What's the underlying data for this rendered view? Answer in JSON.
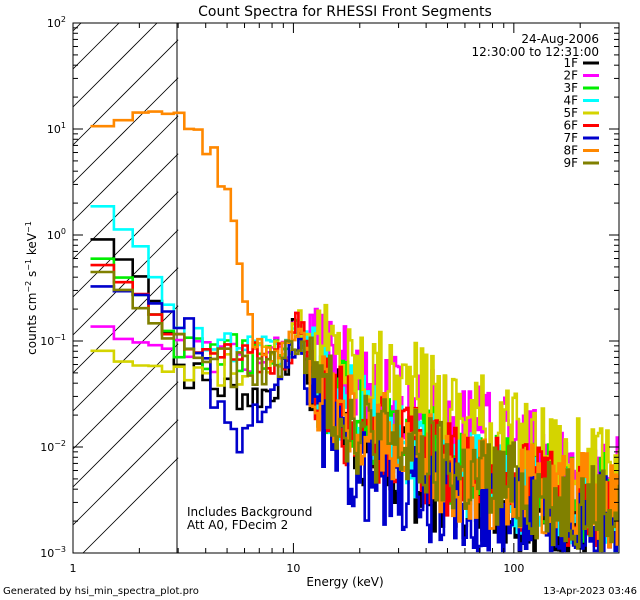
{
  "chart_data": {
    "type": "line",
    "title": "Count Spectra for RHESSI Front Segments",
    "xlabel": "Energy (keV)",
    "ylabel": "counts cm-2 s-1 keV-1",
    "ylabel_parts": {
      "base": "counts cm",
      "exp1": "−2",
      "mid": " s",
      "exp2": "−1",
      "end": " keV",
      "exp3": "−1"
    },
    "xscale": "log",
    "yscale": "log",
    "xlim": [
      1,
      300
    ],
    "ylim": [
      0.001,
      100
    ],
    "x_tick_labels": [
      {
        "value": 1,
        "label": "1"
      },
      {
        "value": 10,
        "label": "10"
      },
      {
        "value": 100,
        "label": "100"
      }
    ],
    "y_tick_labels": [
      {
        "value": 0.001,
        "base": "10",
        "exp": "−3"
      },
      {
        "value": 0.01,
        "base": "10",
        "exp": "−2"
      },
      {
        "value": 0.1,
        "base": "10",
        "exp": "−1"
      },
      {
        "value": 1,
        "base": "10",
        "exp": "0"
      },
      {
        "value": 10,
        "base": "10",
        "exp": "1"
      },
      {
        "value": 100,
        "base": "10",
        "exp": "2"
      }
    ],
    "hatched_region": {
      "x_from": 1,
      "x_to": 3
    },
    "date": "24-Aug-2006",
    "time_range": "12:30:00 to 12:31:00",
    "annotations": [
      "Includes Background",
      "Att A0, FDecim 2"
    ],
    "legend_position": "top-right",
    "series": [
      {
        "name": "1F",
        "color": "#000000",
        "ctrl": [
          [
            1.2,
            1.25
          ],
          [
            1.5,
            0.7
          ],
          [
            2.0,
            0.45
          ],
          [
            2.5,
            0.2
          ],
          [
            3.0,
            0.06
          ],
          [
            4.0,
            0.04
          ],
          [
            5.0,
            0.035
          ],
          [
            6.5,
            0.03
          ],
          [
            8.0,
            0.035
          ],
          [
            9.5,
            0.07
          ],
          [
            10.5,
            0.16
          ],
          [
            11.5,
            0.05
          ],
          [
            15,
            0.025
          ],
          [
            20,
            0.012
          ],
          [
            30,
            0.006
          ],
          [
            50,
            0.004
          ],
          [
            100,
            0.003
          ],
          [
            300,
            0.002
          ]
        ]
      },
      {
        "name": "2F",
        "color": "#ff00ff",
        "ctrl": [
          [
            1.2,
            0.15
          ],
          [
            1.5,
            0.12
          ],
          [
            2.0,
            0.1
          ],
          [
            2.5,
            0.09
          ],
          [
            3.0,
            0.08
          ],
          [
            4.0,
            0.075
          ],
          [
            6.0,
            0.07
          ],
          [
            8.0,
            0.07
          ],
          [
            9.5,
            0.08
          ],
          [
            10.5,
            0.14
          ],
          [
            12,
            0.08
          ],
          [
            15,
            0.06
          ],
          [
            20,
            0.04
          ],
          [
            30,
            0.028
          ],
          [
            50,
            0.018
          ],
          [
            100,
            0.01
          ],
          [
            200,
            0.006
          ],
          [
            300,
            0.0045
          ]
        ]
      },
      {
        "name": "3F",
        "color": "#00ee00",
        "ctrl": [
          [
            1.2,
            0.65
          ],
          [
            1.5,
            0.5
          ],
          [
            2.0,
            0.28
          ],
          [
            2.5,
            0.15
          ],
          [
            3.0,
            0.1
          ],
          [
            4.0,
            0.08
          ],
          [
            6.0,
            0.075
          ],
          [
            8.0,
            0.07
          ],
          [
            9.5,
            0.08
          ],
          [
            10.5,
            0.15
          ],
          [
            12,
            0.05
          ],
          [
            15,
            0.03
          ],
          [
            20,
            0.02
          ],
          [
            30,
            0.013
          ],
          [
            50,
            0.008
          ],
          [
            100,
            0.005
          ],
          [
            300,
            0.003
          ]
        ]
      },
      {
        "name": "4F",
        "color": "#00ffff",
        "ctrl": [
          [
            1.2,
            2.5
          ],
          [
            1.5,
            1.6
          ],
          [
            2.0,
            0.8
          ],
          [
            2.5,
            0.3
          ],
          [
            3.0,
            0.15
          ],
          [
            4.0,
            0.1
          ],
          [
            6.0,
            0.08
          ],
          [
            8.0,
            0.07
          ],
          [
            9.5,
            0.08
          ],
          [
            10.5,
            0.14
          ],
          [
            12,
            0.06
          ],
          [
            15,
            0.03
          ],
          [
            20,
            0.018
          ],
          [
            30,
            0.011
          ],
          [
            50,
            0.007
          ],
          [
            100,
            0.004
          ],
          [
            300,
            0.0025
          ]
        ]
      },
      {
        "name": "5F",
        "color": "#d4d400",
        "ctrl": [
          [
            1.2,
            0.1
          ],
          [
            1.5,
            0.07
          ],
          [
            2.0,
            0.055
          ],
          [
            2.5,
            0.055
          ],
          [
            3.0,
            0.05
          ],
          [
            4.0,
            0.05
          ],
          [
            5.0,
            0.055
          ],
          [
            6.5,
            0.06
          ],
          [
            8.0,
            0.075
          ],
          [
            9.5,
            0.1
          ],
          [
            10.5,
            0.16
          ],
          [
            12,
            0.11
          ],
          [
            15,
            0.08
          ],
          [
            20,
            0.055
          ],
          [
            30,
            0.04
          ],
          [
            50,
            0.025
          ],
          [
            100,
            0.013
          ],
          [
            200,
            0.007
          ],
          [
            300,
            0.005
          ]
        ]
      },
      {
        "name": "6F",
        "color": "#ff0000",
        "ctrl": [
          [
            1.2,
            0.6
          ],
          [
            1.5,
            0.45
          ],
          [
            2.0,
            0.3
          ],
          [
            2.5,
            0.16
          ],
          [
            3.0,
            0.08
          ],
          [
            4.0,
            0.07
          ],
          [
            6.0,
            0.065
          ],
          [
            8.0,
            0.07
          ],
          [
            9.5,
            0.08
          ],
          [
            10.5,
            0.15
          ],
          [
            12,
            0.05
          ],
          [
            15,
            0.025
          ],
          [
            20,
            0.015
          ],
          [
            30,
            0.01
          ],
          [
            50,
            0.006
          ],
          [
            100,
            0.004
          ],
          [
            300,
            0.0025
          ]
        ]
      },
      {
        "name": "7F",
        "color": "#0000cc",
        "ctrl": [
          [
            1.2,
            0.33
          ],
          [
            1.5,
            0.3
          ],
          [
            2.0,
            0.28
          ],
          [
            2.5,
            0.22
          ],
          [
            3.0,
            0.17
          ],
          [
            3.5,
            0.1
          ],
          [
            4.0,
            0.05
          ],
          [
            5.0,
            0.012
          ],
          [
            6.5,
            0.015
          ],
          [
            8.0,
            0.03
          ],
          [
            9.5,
            0.06
          ],
          [
            10.5,
            0.08
          ],
          [
            12,
            0.03
          ],
          [
            15,
            0.01
          ],
          [
            20,
            0.006
          ],
          [
            30,
            0.004
          ],
          [
            50,
            0.003
          ],
          [
            100,
            0.0025
          ],
          [
            300,
            0.002
          ]
        ]
      },
      {
        "name": "8F",
        "color": "#ff8800",
        "ctrl": [
          [
            1.2,
            10.5
          ],
          [
            1.5,
            12
          ],
          [
            2.0,
            14
          ],
          [
            2.5,
            15
          ],
          [
            3.0,
            14
          ],
          [
            3.5,
            12
          ],
          [
            4.0,
            8
          ],
          [
            4.5,
            4
          ],
          [
            5.0,
            2
          ],
          [
            5.5,
            0.8
          ],
          [
            6.0,
            0.3
          ],
          [
            6.5,
            0.15
          ],
          [
            7.0,
            0.1
          ],
          [
            8.0,
            0.08
          ],
          [
            9.5,
            0.08
          ],
          [
            10.5,
            0.14
          ],
          [
            12,
            0.05
          ],
          [
            15,
            0.025
          ],
          [
            20,
            0.015
          ],
          [
            30,
            0.01
          ],
          [
            50,
            0.006
          ],
          [
            100,
            0.004
          ],
          [
            300,
            0.003
          ]
        ]
      },
      {
        "name": "9F",
        "color": "#808000",
        "ctrl": [
          [
            1.2,
            0.55
          ],
          [
            1.5,
            0.4
          ],
          [
            2.0,
            0.2
          ],
          [
            2.5,
            0.13
          ],
          [
            3.0,
            0.09
          ],
          [
            4.0,
            0.07
          ],
          [
            6.0,
            0.05
          ],
          [
            8.0,
            0.06
          ],
          [
            9.5,
            0.07
          ],
          [
            10.5,
            0.12
          ],
          [
            12,
            0.05
          ],
          [
            15,
            0.025
          ],
          [
            20,
            0.015
          ],
          [
            30,
            0.01
          ],
          [
            50,
            0.006
          ],
          [
            100,
            0.004
          ],
          [
            300,
            0.0025
          ]
        ]
      }
    ]
  },
  "footer": {
    "left": "Generated by hsi_min_spectra_plot.pro",
    "right": "13-Apr-2023 03:46"
  }
}
